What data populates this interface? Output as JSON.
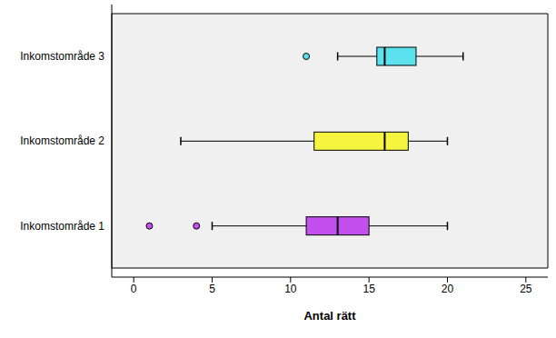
{
  "chart_data": {
    "type": "boxplot",
    "orientation": "horizontal",
    "x_label": "Antal rätt",
    "categories": [
      "Inkomstområde 1",
      "Inkomstområde 2",
      "Inkomstområde 3"
    ],
    "whisker_low": [
      5,
      3,
      13
    ],
    "q1": [
      11,
      11.5,
      15.5
    ],
    "median": [
      13,
      16,
      16
    ],
    "q3": [
      15,
      17.5,
      18
    ],
    "whisker_high": [
      20,
      20,
      21
    ],
    "outliers": [
      [
        1,
        4
      ],
      [],
      [
        11
      ]
    ],
    "colors": [
      "#c34fef",
      "#f5f53f",
      "#5ce1ee"
    ],
    "xlim": [
      -1.4,
      26.4
    ],
    "xticks": [
      0,
      5,
      10,
      15,
      20,
      25
    ],
    "grid": false
  }
}
